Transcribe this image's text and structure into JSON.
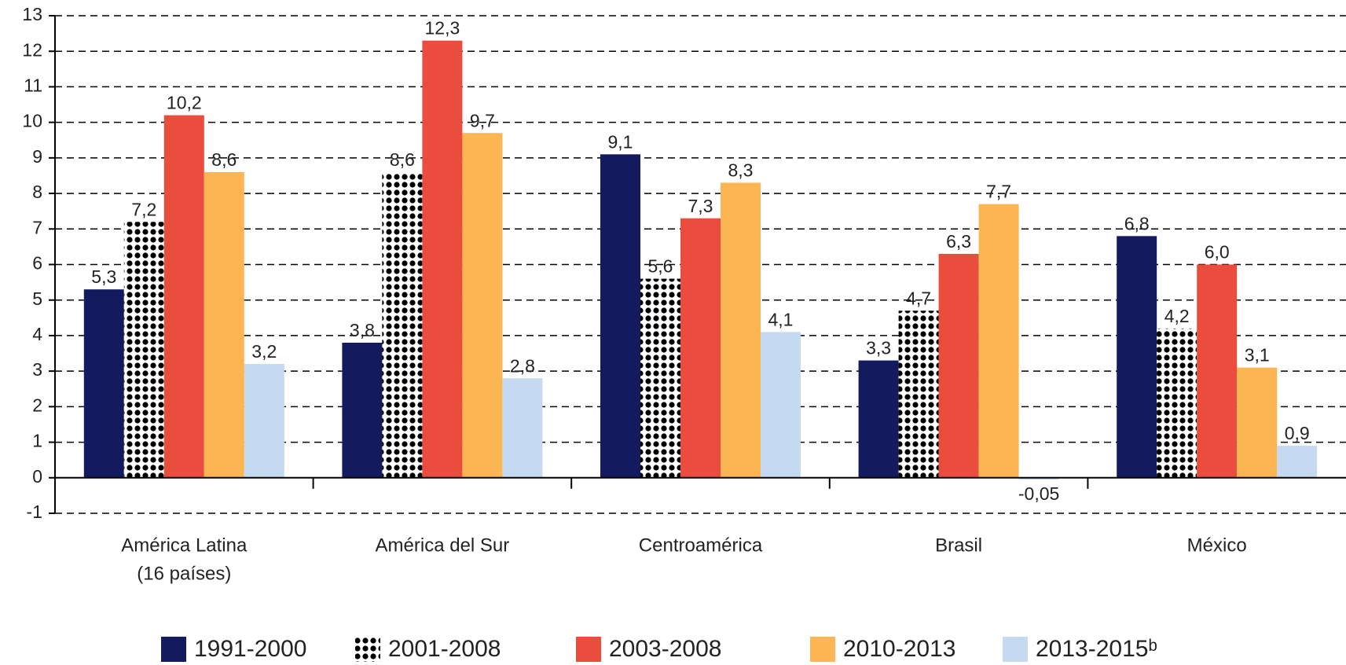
{
  "chart_data": {
    "type": "bar",
    "categories": [
      [
        "América Latina",
        "(16 países)"
      ],
      "América del Sur",
      "Centroamérica",
      "Brasil",
      "México"
    ],
    "series": [
      {
        "name": "1991-2000",
        "color": "#141a5e",
        "values": [
          5.3,
          3.8,
          9.1,
          3.3,
          6.8
        ],
        "value_labels": [
          "5,3",
          "3,8",
          "9,1",
          "3,3",
          "6,8"
        ]
      },
      {
        "name": "2001-2008",
        "color": "#000000",
        "pattern": "dots",
        "values": [
          7.2,
          8.6,
          5.6,
          4.7,
          4.2
        ],
        "value_labels": [
          "7,2",
          "8,6",
          "5,6",
          "4,7",
          "4,2"
        ]
      },
      {
        "name": "2003-2008",
        "color": "#ea4c3e",
        "values": [
          10.2,
          12.3,
          7.3,
          6.3,
          6.0
        ],
        "value_labels": [
          "10,2",
          "12,3",
          "7,3",
          "6,3",
          "6,0"
        ]
      },
      {
        "name": "2010-2013",
        "color": "#fbb552",
        "values": [
          8.6,
          9.7,
          8.3,
          7.7,
          3.1
        ],
        "value_labels": [
          "8,6",
          "9,7",
          "8,3",
          "7,7",
          "3,1"
        ]
      },
      {
        "name": "2013-2015ᵇ",
        "color": "#c5d9f0",
        "values": [
          3.2,
          2.8,
          4.1,
          -0.05,
          0.9
        ],
        "value_labels": [
          "3,2",
          "2,8",
          "4,1",
          "-0,05",
          "0,9"
        ]
      }
    ],
    "ylim": [
      -1,
      13
    ],
    "yticks": [
      -1,
      0,
      1,
      2,
      3,
      4,
      5,
      6,
      7,
      8,
      9,
      10,
      11,
      12,
      13
    ],
    "grid": true,
    "legend": "bottom"
  }
}
